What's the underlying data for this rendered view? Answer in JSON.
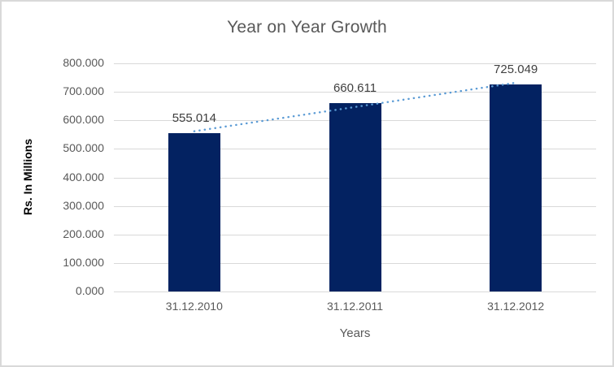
{
  "chart": {
    "title": "Year on Year Growth",
    "y_axis_title": "Rs. In Millions",
    "x_axis_title": "Years",
    "colors": {
      "bar": "#032261",
      "trendline": "#5b9bd5",
      "gridline": "#d9d9d9",
      "border": "#d9d9d9",
      "title_text": "#595959",
      "tick_text": "#595959",
      "axis_title_text": "#595959",
      "y_axis_title_text": "#000000",
      "data_label_text": "#404040",
      "background": "#ffffff"
    }
  },
  "chart_data": {
    "type": "bar",
    "title": "Year on Year Growth",
    "categories": [
      "31.12.2010",
      "31.12.2011",
      "31.12.2012"
    ],
    "series": [
      {
        "name": "Rs. In Millions",
        "values": [
          555.014,
          660.611,
          725.049
        ]
      }
    ],
    "data_labels": [
      "555.014",
      "660.611",
      "725.049"
    ],
    "xlabel": "Years",
    "ylabel": "Rs. In Millions",
    "ylim": [
      0,
      800
    ],
    "ytick_step": 100,
    "ytick_labels": [
      "0.000",
      "100.000",
      "200.000",
      "300.000",
      "400.000",
      "500.000",
      "600.000",
      "700.000",
      "800.000"
    ],
    "grid": true,
    "legend": false,
    "trendline": {
      "type": "linear",
      "style": "dotted",
      "series": "Rs. In Millions"
    }
  }
}
